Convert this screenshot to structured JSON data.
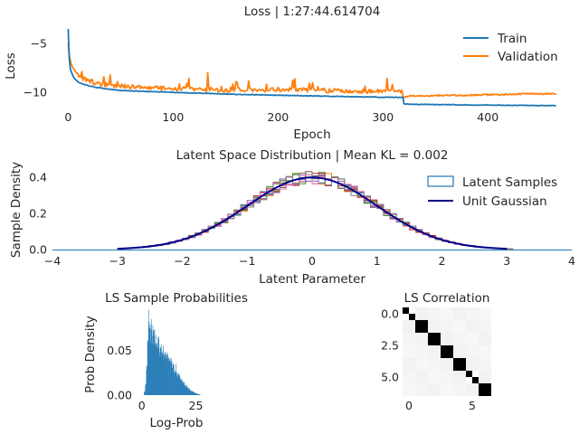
{
  "chart_data": [
    {
      "type": "line",
      "title": "Loss | 1:27:44.614704",
      "xlabel": "Epoch",
      "ylabel": "Loss",
      "xlim": [
        -15,
        480
      ],
      "ylim": [
        -12.2,
        -2.8
      ],
      "xticks": [
        0,
        100,
        200,
        300,
        400
      ],
      "yticks": [
        -5,
        -10
      ],
      "grid": false,
      "legend": "upper right",
      "series": [
        {
          "name": "Train",
          "color": "#1f77b4",
          "x": [
            0,
            1,
            2,
            4,
            6,
            10,
            15,
            20,
            30,
            40,
            50,
            70,
            100,
            130,
            160,
            200,
            250,
            300,
            319,
            320,
            321,
            350,
            400,
            465
          ],
          "y": [
            -3.5,
            -6.5,
            -7.6,
            -8.2,
            -8.6,
            -9.0,
            -9.2,
            -9.35,
            -9.55,
            -9.7,
            -9.8,
            -9.9,
            -10.0,
            -10.1,
            -10.2,
            -10.3,
            -10.4,
            -10.5,
            -10.5,
            -11.1,
            -11.2,
            -11.25,
            -11.3,
            -11.35
          ]
        },
        {
          "name": "Validation",
          "color": "#ff7f0e",
          "x": [
            0,
            1,
            2,
            3,
            5,
            8,
            12,
            18,
            25,
            35,
            45,
            55,
            65,
            80,
            100,
            115,
            125,
            132,
            133,
            134,
            140,
            150,
            165,
            180,
            200,
            220,
            240,
            260,
            280,
            300,
            310,
            318,
            320,
            325,
            340,
            360,
            380,
            400,
            420,
            440,
            465
          ],
          "y": [
            -4.8,
            -6.2,
            -6.6,
            -7.0,
            -7.8,
            -8.1,
            -8.5,
            -8.7,
            -9.0,
            -9.2,
            -9.3,
            -9.4,
            -9.5,
            -9.55,
            -9.6,
            -9.65,
            -9.7,
            -9.8,
            -7.9,
            -9.7,
            -9.75,
            -9.8,
            -9.7,
            -9.8,
            -9.7,
            -9.75,
            -9.8,
            -9.85,
            -9.9,
            -9.9,
            -9.9,
            -9.95,
            -10.45,
            -10.4,
            -10.35,
            -10.3,
            -10.3,
            -10.25,
            -10.2,
            -10.15,
            -10.15
          ]
        }
      ]
    },
    {
      "type": "line",
      "title": "Latent Space Distribution | Mean KL = 0.002",
      "xlabel": "Latent Parameter",
      "ylabel": "Sample Density",
      "xlim": [
        -4,
        4
      ],
      "ylim": [
        0,
        0.46
      ],
      "xticks": [
        -4,
        -3,
        -2,
        -1,
        0,
        1,
        2,
        3,
        4
      ],
      "yticks": [
        0.0,
        0.2,
        0.4
      ],
      "grid": false,
      "legend": "upper right",
      "series": [
        {
          "name": "Latent Samples",
          "type": "step-histograms",
          "count": 8,
          "colors": [
            "#1f77b4",
            "#ff7f0e",
            "#2ca02c",
            "#d62728",
            "#9467bd",
            "#8c564b",
            "#e377c2",
            "#7f7f7f"
          ],
          "range": [
            -2.9,
            2.9
          ],
          "peak": 0.42
        },
        {
          "name": "Unit Gaussian",
          "color": "#00008b",
          "mean": 0,
          "std": 1,
          "range": [
            -3,
            3
          ]
        }
      ]
    },
    {
      "type": "bar",
      "title": "LS Sample Probabilities",
      "xlabel": "Log-Prob",
      "ylabel": "Prob Density",
      "xlim": [
        -2,
        34
      ],
      "ylim": [
        0,
        0.098
      ],
      "xticks": [
        0,
        25
      ],
      "yticks": [
        0.0,
        0.05
      ],
      "color": "#1f77b4",
      "histogram": {
        "bin_width": 0.5,
        "bin_start": 1.0,
        "values": [
          0.004,
          0.012,
          0.03,
          0.058,
          0.086,
          0.07,
          0.074,
          0.066,
          0.068,
          0.064,
          0.06,
          0.062,
          0.056,
          0.058,
          0.052,
          0.054,
          0.05,
          0.048,
          0.046,
          0.05,
          0.044,
          0.042,
          0.04,
          0.038,
          0.036,
          0.04,
          0.032,
          0.03,
          0.028,
          0.03,
          0.024,
          0.022,
          0.02,
          0.018,
          0.02,
          0.016,
          0.014,
          0.012,
          0.01,
          0.01,
          0.008,
          0.007,
          0.006,
          0.005,
          0.004,
          0.004,
          0.003,
          0.002,
          0.002,
          0.001,
          0.001,
          0.001
        ]
      }
    },
    {
      "type": "heatmap",
      "title": "LS Correlation",
      "xticks": [
        0,
        5
      ],
      "yticks": [
        0.0,
        2.5,
        5.0
      ],
      "size": 7,
      "cmap": "gray_r",
      "values": [
        [
          1.0,
          0.05,
          0.04,
          0.03,
          0.05,
          0.04,
          0.03
        ],
        [
          0.05,
          1.0,
          0.05,
          0.04,
          0.03,
          0.05,
          0.04
        ],
        [
          0.04,
          0.05,
          1.0,
          0.05,
          0.04,
          0.03,
          0.05
        ],
        [
          0.03,
          0.04,
          0.05,
          1.0,
          0.05,
          0.04,
          0.03
        ],
        [
          0.05,
          0.03,
          0.04,
          0.05,
          1.0,
          0.05,
          0.04
        ],
        [
          0.04,
          0.05,
          0.03,
          0.04,
          0.05,
          1.0,
          0.05
        ],
        [
          0.03,
          0.04,
          0.05,
          0.03,
          0.04,
          0.05,
          1.0
        ]
      ],
      "sub_blocks": [
        0,
        5
      ]
    }
  ]
}
